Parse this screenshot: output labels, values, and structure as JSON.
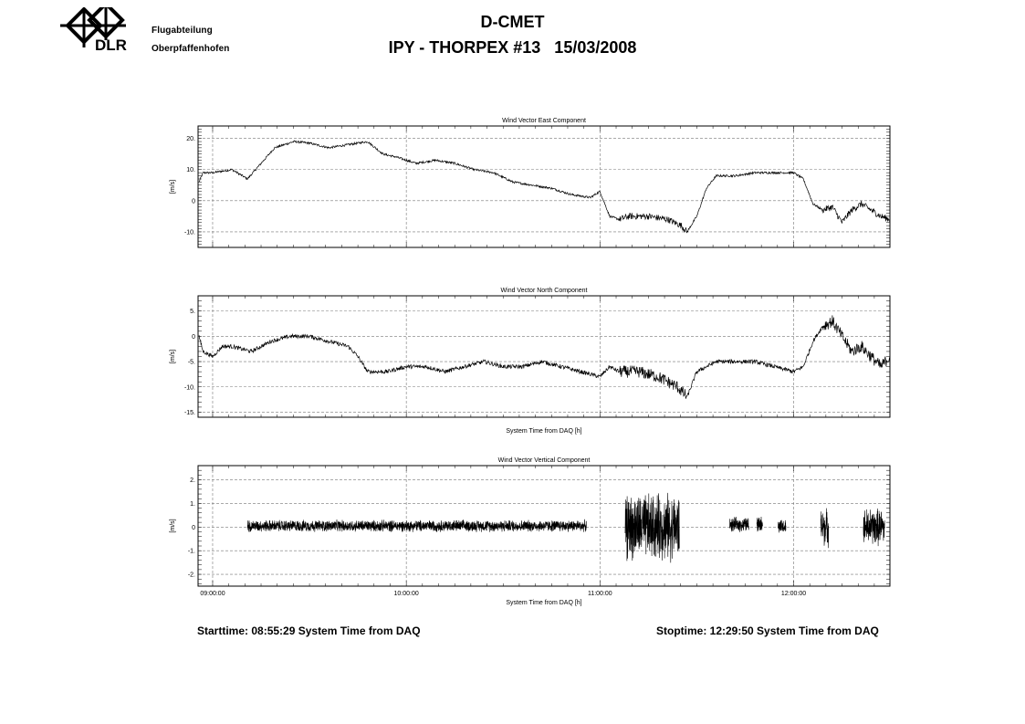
{
  "header": {
    "logo_text": "DLR",
    "dept_line1": "Flugabteilung",
    "dept_line2": "Oberpfaffenhofen",
    "title_line1": "D-CMET",
    "title_line2": "IPY - THORPEX #13   15/03/2008"
  },
  "footer": {
    "start": "Starttime: 08:55:29 System Time from DAQ",
    "stop": "Stoptime: 12:29:50 System Time from DAQ"
  },
  "chart_data": [
    {
      "type": "line",
      "title": "Wind Vector East Component",
      "ylabel": "[m/s]",
      "xlabel": "",
      "xlim_hours": [
        8.9247,
        12.4972
      ],
      "ylim": [
        -15,
        24
      ],
      "yticks": [
        20,
        10,
        0,
        -10
      ],
      "ytick_labels": [
        "20.",
        "10.",
        "0",
        "-10."
      ],
      "xgrid_hours": [
        9,
        10,
        11,
        12
      ],
      "grid": true,
      "series": [
        {
          "x": [
            8.93,
            8.95,
            9.0,
            9.1,
            9.18,
            9.25,
            9.32,
            9.42,
            9.5,
            9.6,
            9.7,
            9.8,
            9.88,
            9.95,
            10.05,
            10.15,
            10.25,
            10.35,
            10.45,
            10.55,
            10.65,
            10.75,
            10.85,
            10.95,
            11.0,
            11.05,
            11.1,
            11.15,
            11.25,
            11.35,
            11.42,
            11.45,
            11.5,
            11.55,
            11.6,
            11.7,
            11.8,
            11.9,
            12.0,
            12.05,
            12.1,
            12.15,
            12.2,
            12.25,
            12.3,
            12.35,
            12.4,
            12.45,
            12.497
          ],
          "y": [
            6,
            9,
            9,
            10,
            7,
            12,
            17,
            19,
            18.5,
            17,
            18,
            19,
            15,
            14,
            12,
            13,
            12,
            10,
            9,
            6,
            5,
            4,
            2,
            1,
            3,
            -5,
            -6,
            -5,
            -5,
            -6,
            -8,
            -10,
            -5,
            4,
            8,
            8,
            9,
            9,
            9,
            7,
            -1,
            -3,
            -2,
            -7,
            -3,
            -1,
            -3,
            -5,
            -6
          ],
          "noise": 0.7
        }
      ]
    },
    {
      "type": "line",
      "title": "Wind Vector North Component",
      "ylabel": "[m/s]",
      "xlabel": "System Time from DAQ [h]",
      "xlim_hours": [
        8.9247,
        12.4972
      ],
      "ylim": [
        -16,
        8
      ],
      "yticks": [
        5,
        0,
        -5,
        -10,
        -15
      ],
      "ytick_labels": [
        "5.",
        "0",
        "-5.",
        "-10.",
        "-15."
      ],
      "xgrid_hours": [
        9,
        10,
        11,
        12
      ],
      "grid": true,
      "series": [
        {
          "x": [
            8.93,
            8.95,
            9.0,
            9.05,
            9.1,
            9.2,
            9.3,
            9.4,
            9.5,
            9.6,
            9.7,
            9.75,
            9.8,
            9.9,
            10.0,
            10.1,
            10.2,
            10.3,
            10.4,
            10.5,
            10.6,
            10.7,
            10.8,
            10.9,
            11.0,
            11.05,
            11.1,
            11.2,
            11.3,
            11.4,
            11.45,
            11.5,
            11.6,
            11.7,
            11.8,
            11.9,
            12.0,
            12.05,
            12.1,
            12.15,
            12.2,
            12.25,
            12.3,
            12.35,
            12.4,
            12.45,
            12.497
          ],
          "y": [
            0,
            -3,
            -4,
            -2,
            -2,
            -3,
            -1,
            0,
            0,
            -1,
            -2,
            -4,
            -7,
            -7,
            -6,
            -6,
            -7,
            -6,
            -5,
            -6,
            -6,
            -5,
            -6,
            -7,
            -8,
            -6,
            -7,
            -7,
            -8,
            -10,
            -12,
            -7,
            -5,
            -5,
            -5,
            -6,
            -7,
            -6,
            -1,
            2,
            3,
            0,
            -3,
            -2,
            -4,
            -6,
            -4
          ],
          "noise": 0.8
        }
      ]
    },
    {
      "type": "line",
      "title": "Wind Vector Vertical Component",
      "ylabel": "[m/s]",
      "xlabel": "System Time from DAQ [h]",
      "xlim_hours": [
        8.9247,
        12.4972
      ],
      "ylim": [
        -2.5,
        2.6
      ],
      "yticks": [
        2,
        1,
        0,
        -1,
        -2
      ],
      "ytick_labels": [
        "2.",
        "1.",
        "0",
        "-1.",
        "-2."
      ],
      "xgrid_hours": [
        9,
        10,
        11,
        12
      ],
      "xtick_labels": [
        "09:00:00",
        "10:00:00",
        "11:00:00",
        "12:00:00"
      ],
      "grid": true,
      "segments": [
        {
          "x0": 9.18,
          "x1": 10.93,
          "mean": 0.05,
          "amp": 0.28
        },
        {
          "x0": 11.13,
          "x1": 11.41,
          "mean": 0.0,
          "amp": 1.6
        },
        {
          "x0": 11.67,
          "x1": 11.77,
          "mean": 0.1,
          "amp": 0.35
        },
        {
          "x0": 11.81,
          "x1": 11.84,
          "mean": 0.15,
          "amp": 0.35
        },
        {
          "x0": 11.92,
          "x1": 11.96,
          "mean": 0.0,
          "amp": 0.35
        },
        {
          "x0": 12.14,
          "x1": 12.18,
          "mean": 0.0,
          "amp": 0.9
        },
        {
          "x0": 12.36,
          "x1": 12.47,
          "mean": 0.0,
          "amp": 0.9
        }
      ]
    }
  ]
}
